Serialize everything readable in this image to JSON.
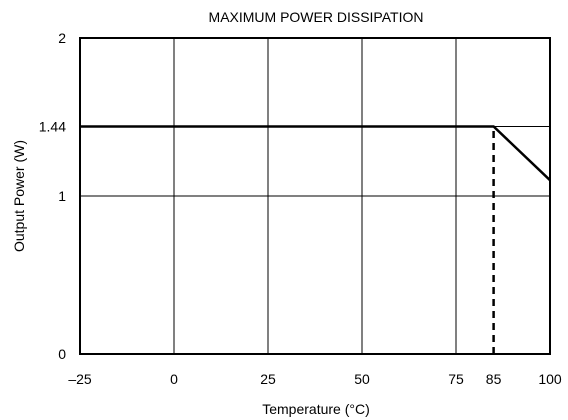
{
  "chart_data": {
    "type": "line",
    "title": "MAXIMUM POWER DISSIPATION",
    "xlabel": "Temperature (°C)",
    "ylabel": "Output Power (W)",
    "xlim": [
      -25,
      100
    ],
    "ylim": [
      0,
      2
    ],
    "x_ticks": [
      {
        "value": -25,
        "label": "–25"
      },
      {
        "value": 0,
        "label": "0"
      },
      {
        "value": 25,
        "label": "25"
      },
      {
        "value": 50,
        "label": "50"
      },
      {
        "value": 75,
        "label": "75"
      },
      {
        "value": 85,
        "label": "85"
      },
      {
        "value": 100,
        "label": "100"
      }
    ],
    "y_ticks": [
      {
        "value": 0,
        "label": "0"
      },
      {
        "value": 1,
        "label": "1"
      },
      {
        "value": 1.44,
        "label": "1.44"
      },
      {
        "value": 2,
        "label": "2"
      }
    ],
    "x_grid": [
      0,
      25,
      50,
      75
    ],
    "y_grid": [
      1,
      1.44
    ],
    "grid": true,
    "series": [
      {
        "x": [
          -25,
          85,
          100
        ],
        "y": [
          1.44,
          1.44,
          1.1
        ]
      }
    ],
    "reference_lines": [
      {
        "x": 85,
        "y_from": 0,
        "y_to": 1.44,
        "style": "dashed"
      }
    ]
  }
}
